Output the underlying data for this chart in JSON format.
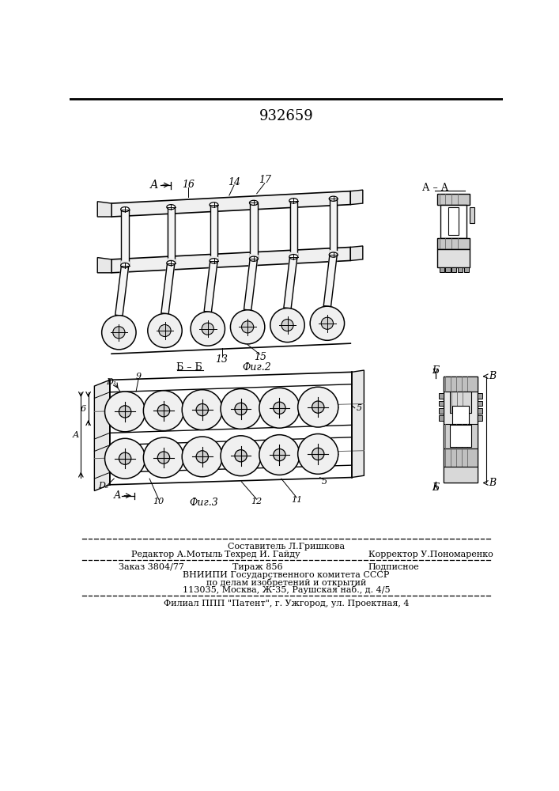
{
  "patent_number": "932659",
  "bg_color": "#ffffff",
  "line_color": "#000000",
  "footer": {
    "composer": "Составитель Л.Гришкова",
    "editor": "Редактор А.Мотыль",
    "techred": "Техред И. Гайду",
    "corrector": "Корректор У.Пономаренко",
    "order": "Заказ 3804/77",
    "tirazh": "Тираж 856",
    "podpisnoe": "Подписное",
    "vniiipi": "ВНИИПИ Государственного комитета СССР",
    "po_delam": "по делам изобретений и открытий",
    "address": "113035, Москва, Ж-35, Раушская наб., д. 4/5",
    "filial": "Филиал ППП \"Патент\", г. Ужгород, ул. Проектная, 4"
  }
}
